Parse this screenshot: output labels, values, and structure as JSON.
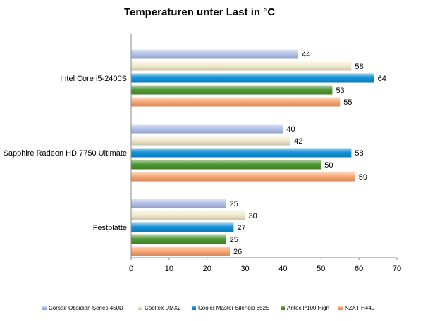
{
  "chart_data": {
    "type": "bar",
    "orientation": "horizontal",
    "title": "Temperaturen  unter Last in °C",
    "categories": [
      "Intel Core i5-2400S",
      "Sapphire Radeon HD 7750 Ultimate",
      "Festplatte"
    ],
    "series": [
      {
        "name": "Corsair Obsidian Series 450D",
        "values": [
          44,
          40,
          25
        ],
        "color": "#b4c4ec"
      },
      {
        "name": "Cooltek UMX2",
        "values": [
          58,
          42,
          30
        ],
        "color": "#f4ecce"
      },
      {
        "name": "Cooler Master Silencio 652S",
        "values": [
          64,
          58,
          27
        ],
        "color": "#1294dc"
      },
      {
        "name": "Antec P100 High",
        "values": [
          53,
          50,
          25
        ],
        "color": "#4e9a32"
      },
      {
        "name": "NZXT H440",
        "values": [
          55,
          59,
          26
        ],
        "color": "#fca874"
      }
    ],
    "xlim": [
      0,
      70
    ],
    "xticks": [
      0,
      10,
      20,
      30,
      40,
      50,
      60,
      70
    ],
    "grid": false,
    "legend_position": "bottom",
    "xlabel": "",
    "ylabel": ""
  }
}
